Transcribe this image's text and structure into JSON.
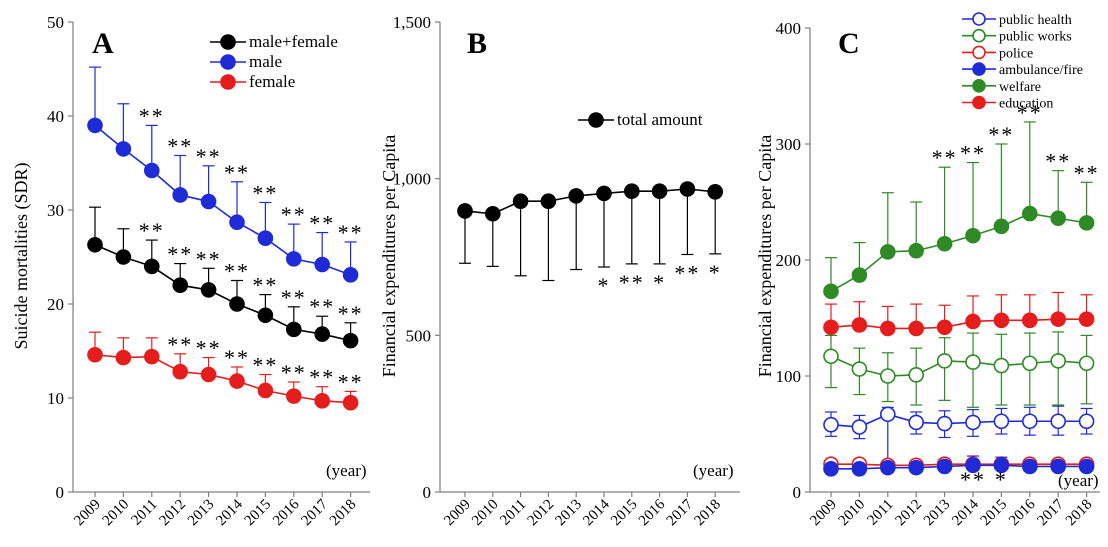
{
  "chart_data": [
    {
      "type": "line",
      "panel_letter": "A",
      "title": "",
      "xlabel": "",
      "ylabel": "Suicide mortalities (SDR)",
      "x_unit_note": "(year)",
      "x": [
        "2009",
        "2010",
        "2011",
        "2012",
        "2013",
        "2014",
        "2015",
        "2016",
        "2017",
        "2018"
      ],
      "ylim": [
        0,
        50
      ],
      "yticks": [
        "0",
        "10",
        "20",
        "30",
        "40",
        "50"
      ],
      "grid": false,
      "legend_position": "top-right",
      "series": [
        {
          "name": "male+female",
          "color": "#000000",
          "filled": true,
          "values": [
            26.3,
            25.0,
            24.0,
            22.0,
            21.5,
            20.0,
            18.8,
            17.3,
            16.8,
            16.1
          ],
          "upper": [
            30.3,
            28.0,
            26.8,
            24.3,
            23.8,
            22.5,
            21.0,
            19.7,
            18.7,
            18.0
          ],
          "marks": [
            "",
            "",
            "**",
            "**",
            "**",
            "**",
            "**",
            "**",
            "**",
            "**"
          ]
        },
        {
          "name": "male",
          "color": "#1f2bd6",
          "filled": true,
          "values": [
            39.0,
            36.5,
            34.2,
            31.6,
            30.9,
            28.7,
            27.0,
            24.8,
            24.2,
            23.1
          ],
          "upper": [
            45.2,
            41.3,
            39.0,
            35.8,
            34.7,
            33.0,
            30.8,
            28.5,
            27.6,
            26.6
          ],
          "marks": [
            "",
            "",
            "**",
            "**",
            "**",
            "**",
            "**",
            "**",
            "**",
            "**"
          ]
        },
        {
          "name": "female",
          "color": "#e51d1d",
          "filled": true,
          "values": [
            14.6,
            14.3,
            14.4,
            12.8,
            12.5,
            11.8,
            10.8,
            10.2,
            9.7,
            9.5
          ],
          "upper": [
            17.0,
            16.4,
            16.4,
            14.7,
            14.3,
            13.3,
            12.5,
            11.7,
            11.2,
            10.7
          ],
          "marks": [
            "",
            "",
            "",
            "**",
            "**",
            "**",
            "**",
            "**",
            "**",
            "**"
          ]
        }
      ]
    },
    {
      "type": "line",
      "panel_letter": "B",
      "title": "",
      "xlabel": "",
      "ylabel": "Financial expenditures per Capita",
      "x_unit_note": "(year)",
      "x": [
        "2009",
        "2010",
        "2011",
        "2012",
        "2013",
        "2014",
        "2015",
        "2016",
        "2017",
        "2018"
      ],
      "ylim": [
        0,
        1500
      ],
      "yticks": [
        "0",
        "500",
        "1,000",
        "1,500"
      ],
      "grid": false,
      "legend_position": "top-right",
      "series": [
        {
          "name": "total amount",
          "color": "#000000",
          "filled": true,
          "error_direction": "down",
          "values": [
            897,
            888,
            928,
            928,
            945,
            953,
            960,
            960,
            967,
            958
          ],
          "lower": [
            730,
            720,
            690,
            675,
            710,
            718,
            728,
            728,
            758,
            760
          ],
          "marks": [
            "",
            "",
            "",
            "",
            "",
            "*",
            "**",
            "*",
            "**",
            "*"
          ]
        }
      ]
    },
    {
      "type": "line",
      "panel_letter": "C",
      "title": "",
      "xlabel": "",
      "ylabel": "Financial expenditures per Capita",
      "x_unit_note": "(year)",
      "x": [
        "2009",
        "2010",
        "2011",
        "2012",
        "2013",
        "2014",
        "2015",
        "2016",
        "2017",
        "2018"
      ],
      "ylim": [
        0,
        400
      ],
      "yticks": [
        "0",
        "100",
        "200",
        "300",
        "400"
      ],
      "grid": false,
      "legend_position": "top-right",
      "series": [
        {
          "name": "public health",
          "color": "#1f2bd6",
          "filled": false,
          "values": [
            58,
            56,
            67,
            60,
            59,
            60,
            61,
            61,
            61,
            61
          ],
          "upper": [
            69,
            66,
            73,
            69,
            70,
            71,
            72,
            73,
            74,
            72
          ],
          "lower": [
            48,
            46,
            25,
            50,
            47,
            48,
            50,
            49,
            49,
            50
          ]
        },
        {
          "name": "public works",
          "color": "#2e8a24",
          "filled": false,
          "values": [
            117,
            106,
            100,
            101,
            113,
            112,
            109,
            111,
            113,
            111
          ],
          "upper": [
            135,
            124,
            120,
            124,
            133,
            137,
            136,
            137,
            138,
            135
          ],
          "lower": [
            90,
            84,
            78,
            75,
            79,
            73,
            75,
            75,
            75,
            76
          ]
        },
        {
          "name": "police",
          "color": "#e51d1d",
          "filled": false,
          "values": [
            24,
            24,
            23,
            23,
            24,
            24,
            24,
            24,
            24,
            24
          ],
          "upper": [
            25,
            25,
            24,
            24,
            25,
            25,
            25,
            25,
            25,
            25
          ],
          "lower": [
            23,
            23,
            22,
            22,
            23,
            23,
            23,
            23,
            23,
            23
          ]
        },
        {
          "name": "ambulance/fire",
          "color": "#1f2bd6",
          "filled": true,
          "values": [
            20,
            20,
            21,
            21,
            22,
            23,
            23,
            22,
            22,
            22
          ],
          "upper": [
            23,
            23,
            24,
            24,
            25,
            31,
            30,
            26,
            26,
            25
          ],
          "marks_below": [
            "",
            "",
            "",
            "",
            "",
            "**",
            "*",
            "",
            "",
            ""
          ]
        },
        {
          "name": "welfare",
          "color": "#2e8a24",
          "filled": true,
          "values": [
            173,
            187,
            207,
            208,
            214,
            221,
            229,
            240,
            236,
            232
          ],
          "upper": [
            202,
            215,
            258,
            250,
            280,
            284,
            300,
            319,
            277,
            267
          ],
          "marks": [
            "",
            "",
            "",
            "",
            "**",
            "**",
            "**",
            "**",
            "**",
            "**"
          ]
        },
        {
          "name": "education",
          "color": "#e51d1d",
          "filled": true,
          "values": [
            142,
            144,
            141,
            141,
            142,
            147,
            148,
            148,
            149,
            149
          ],
          "upper": [
            162,
            164,
            160,
            162,
            161,
            169,
            170,
            170,
            172,
            170
          ]
        }
      ]
    }
  ]
}
